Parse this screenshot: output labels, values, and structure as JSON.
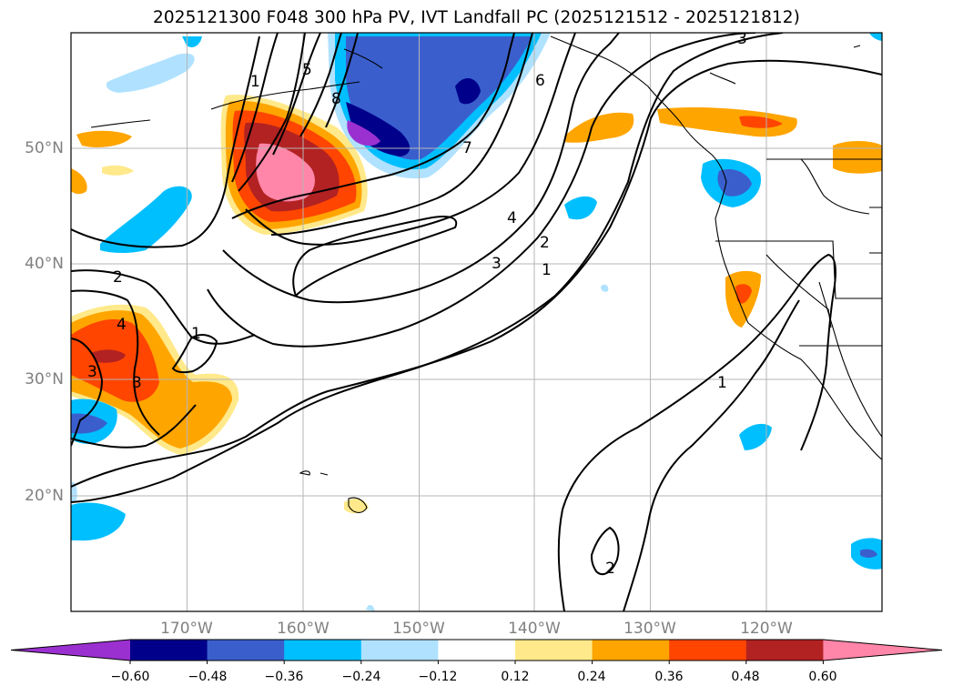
{
  "title": "2025121300 F048 300 hPa PV, IVT Landfall PC (2025121512 - 2025121812)",
  "latitude_labels": [
    "50°N",
    "40°N",
    "30°N",
    "20°N"
  ],
  "longitude_labels": [
    "170°W",
    "160°W",
    "150°W",
    "140°W",
    "130°W",
    "120°W"
  ],
  "contour_labels": [
    "1",
    "5",
    "8",
    "7",
    "6",
    "3",
    "4",
    "3",
    "2",
    "1",
    "2",
    "4",
    "1",
    "3",
    "3",
    "1",
    "2"
  ],
  "colorbar": {
    "ticks": [
      "−0.60",
      "−0.48",
      "−0.36",
      "−0.24",
      "−0.12",
      "0.12",
      "0.24",
      "0.36",
      "0.48",
      "0.60"
    ],
    "colors": [
      "#9b30d0",
      "#00008b",
      "#3a5fcd",
      "#00bfff",
      "#b0e2ff",
      "#ffffff",
      "#ffe98a",
      "#ffa500",
      "#ff4500",
      "#b22222",
      "#ff86a8"
    ]
  }
}
